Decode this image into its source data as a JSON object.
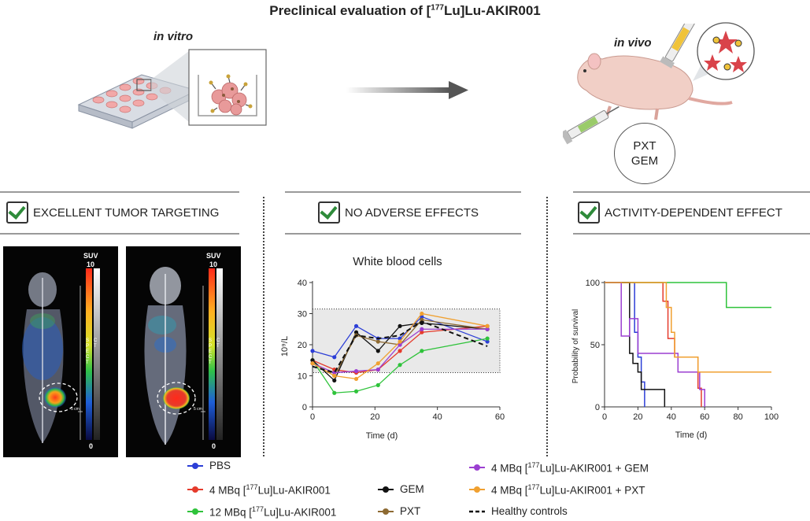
{
  "header": {
    "title_prefix": "Preclinical evaluation of [",
    "title_sup": "177",
    "title_suffix": "Lu]Lu-AKIR001",
    "in_vitro_label": "in vitro",
    "in_vivo_label": "in vivo",
    "pxt_label": "PXT",
    "gem_label": "GEM"
  },
  "sections": {
    "left_title": "EXCELLENT TUMOR TARGETING",
    "middle_title": "NO ADVERSE EFFECTS",
    "right_title": "ACTIVITY-DEPENDENT EFFECT"
  },
  "spect_panels": {
    "suv_label": "SUV",
    "scale_max": "10",
    "scale_min": "0",
    "spect_label": "S P E C T",
    "ct_label": "C T",
    "scale_bar_label": "5 cm"
  },
  "colors": {
    "pbs": "#2c3ed6",
    "lu4": "#e53b2c",
    "lu12": "#2fc33b",
    "gem": "#111111",
    "pxt": "#8d6a32",
    "lu4_gem": "#9b3fd1",
    "lu4_pxt": "#f0a030",
    "healthy": "#111111"
  },
  "chart_data": [
    {
      "type": "line",
      "title": "White blood cells",
      "xlabel": "Time (d)",
      "ylabel": "10⁹/L",
      "xlim": [
        0,
        60
      ],
      "ylim": [
        0,
        40
      ],
      "xticks": [
        0,
        20,
        40,
        60
      ],
      "yticks": [
        0,
        10,
        20,
        30,
        40
      ],
      "reference_band": [
        11,
        31.5
      ],
      "series": [
        {
          "name": "PBS",
          "x": [
            0,
            7,
            14,
            21,
            28,
            35,
            56
          ],
          "values": [
            18,
            16,
            26,
            22,
            22,
            29,
            21
          ]
        },
        {
          "name": "4 MBq [177Lu]Lu-AKIR001",
          "x": [
            0,
            7,
            14,
            21,
            28,
            35,
            56
          ],
          "values": [
            15,
            12,
            11,
            12,
            18,
            24,
            26
          ]
        },
        {
          "name": "12 MBq [177Lu]Lu-AKIR001",
          "x": [
            0,
            7,
            14,
            21,
            28,
            35,
            56
          ],
          "values": [
            15,
            4.5,
            5,
            7,
            13.5,
            18,
            22
          ]
        },
        {
          "name": "GEM",
          "x": [
            0,
            7,
            14,
            21,
            28,
            35,
            56
          ],
          "values": [
            15,
            8.5,
            24,
            18,
            26,
            27,
            25
          ]
        },
        {
          "name": "PXT",
          "x": [
            0,
            7,
            14,
            21,
            28,
            35,
            56
          ],
          "values": [
            14,
            10,
            23,
            21,
            20,
            28,
            25
          ]
        },
        {
          "name": "4 MBq [177Lu]Lu-AKIR001 + GEM",
          "x": [
            0,
            7,
            14,
            21,
            28,
            35,
            56
          ],
          "values": [
            14,
            11,
            11.5,
            12,
            20,
            25,
            25
          ]
        },
        {
          "name": "4 MBq [177Lu]Lu-AKIR001 + PXT",
          "x": [
            0,
            7,
            14,
            21,
            28,
            35,
            56
          ],
          "values": [
            14,
            10,
            9,
            14,
            21,
            30,
            26
          ]
        },
        {
          "name": "Healthy controls",
          "x": [
            0,
            7,
            14,
            21,
            28,
            35,
            56
          ],
          "values": [
            13,
            11,
            23,
            22,
            23,
            27.5,
            19.5
          ]
        }
      ]
    },
    {
      "type": "line",
      "title": "",
      "xlabel": "Time (d)",
      "ylabel": "Probability of survival",
      "xlim": [
        0,
        100
      ],
      "ylim": [
        0,
        100
      ],
      "xticks": [
        0,
        20,
        40,
        60,
        80,
        100
      ],
      "yticks": [
        0,
        50,
        100
      ],
      "series": [
        {
          "name": "PBS",
          "x": [
            0,
            18,
            20,
            22,
            24
          ],
          "values": [
            100,
            60,
            40,
            20,
            0
          ]
        },
        {
          "name": "4 MBq [177Lu]Lu-AKIR001",
          "x": [
            0,
            35,
            38,
            42,
            56,
            58
          ],
          "values": [
            100,
            85,
            55,
            40,
            15,
            0
          ]
        },
        {
          "name": "12 MBq [177Lu]Lu-AKIR001",
          "x": [
            0,
            73,
            100
          ],
          "values": [
            100,
            80,
            80
          ]
        },
        {
          "name": "GEM",
          "x": [
            0,
            15,
            17,
            20,
            22,
            36
          ],
          "values": [
            100,
            43,
            35,
            28,
            14,
            0
          ]
        },
        {
          "name": "4 MBq [177Lu]Lu-AKIR001 + GEM",
          "x": [
            0,
            10,
            15,
            20,
            36,
            44,
            57,
            60
          ],
          "values": [
            100,
            57,
            71,
            43,
            43,
            28,
            14,
            0
          ]
        },
        {
          "name": "4 MBq [177Lu]Lu-AKIR001 + PXT",
          "x": [
            0,
            37,
            40,
            42,
            48,
            56,
            100
          ],
          "values": [
            100,
            80,
            60,
            40,
            40,
            28,
            28
          ]
        }
      ]
    }
  ],
  "legend": {
    "pbs": "PBS",
    "lu4_pre": "4 MBq [",
    "lu4_post": "Lu]Lu-AKIR001",
    "lu12_pre": "12 MBq [",
    "lu12_post": "Lu]Lu-AKIR001",
    "sup": "177",
    "gem": "GEM",
    "pxt": "PXT",
    "lu4gem_pre": "4 MBq [",
    "lu4gem_post": "Lu]Lu-AKIR001 + GEM",
    "lu4pxt_pre": "4 MBq [",
    "lu4pxt_post": "Lu]Lu-AKIR001 + PXT",
    "healthy": "Healthy controls"
  }
}
